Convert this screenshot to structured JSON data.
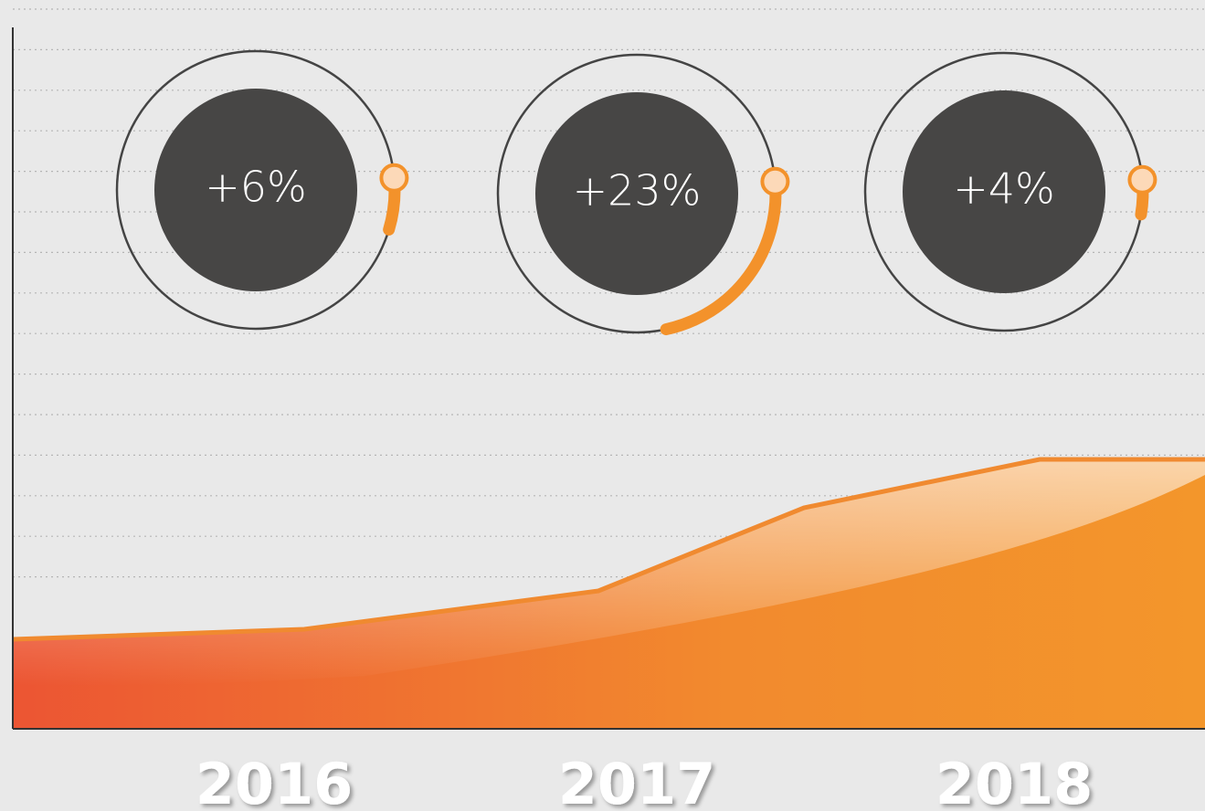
{
  "gauges": [
    {
      "label": "+6%",
      "value": 6
    },
    {
      "label": "+23%",
      "value": 23
    },
    {
      "label": "+4%",
      "value": 4
    }
  ],
  "years": [
    "2016",
    "2017",
    "2018"
  ]
}
